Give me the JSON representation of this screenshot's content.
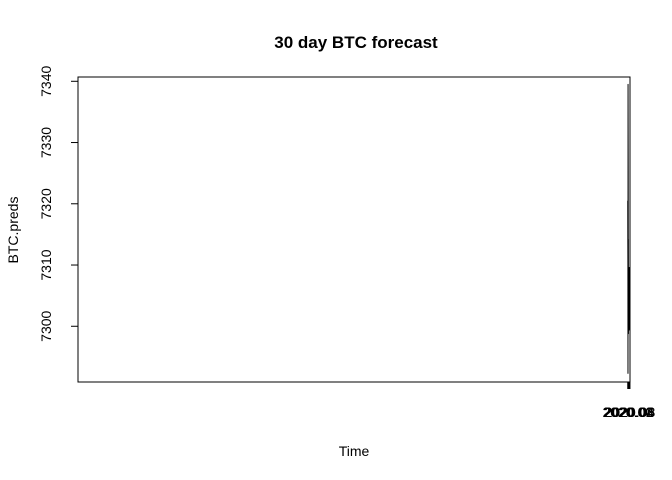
{
  "chart_data": {
    "type": "line",
    "title": "30 day BTC forecast",
    "xlabel": "Time",
    "ylabel": "BTC.preds",
    "xlim": [
      1999.9965,
      2020.0818
    ],
    "ylim": [
      7290.9,
      7340.7
    ],
    "x_ticks": [
      2020.0,
      2020.02,
      2020.04,
      2020.06,
      2020.08
    ],
    "x_tick_labels": [
      "2020.00",
      "2020.02",
      "2020.04",
      "2020.06",
      "2020.08"
    ],
    "y_ticks": [
      7300,
      7310,
      7320,
      7330,
      7340
    ],
    "y_tick_labels": [
      "7300",
      "7310",
      "7320",
      "7330",
      "7340"
    ],
    "grid": false,
    "legend": "none",
    "line_color": "#000000",
    "series": [
      {
        "x": [
          2020.0,
          2020.00274,
          2020.00548,
          2020.00822,
          2020.01096,
          2020.0137,
          2020.01644,
          2020.01918,
          2020.02192,
          2020.02466,
          2020.0274,
          2020.03014,
          2020.03288,
          2020.03562,
          2020.03836,
          2020.0411,
          2020.04384,
          2020.04658,
          2020.04932,
          2020.05205,
          2020.05479,
          2020.05753,
          2020.06027,
          2020.06301,
          2020.06575,
          2020.06849,
          2020.07123,
          2020.07397,
          2020.07671,
          2020.07945
        ],
        "values": [
          7320.5,
          7313.7,
          7310.5,
          7292.3,
          7339.5,
          7331.7,
          7325.5,
          7309.3,
          7314.2,
          7298.8,
          7306.5,
          7301.3,
          7303.6,
          7303.6,
          7308.9,
          7306.9,
          7300.8,
          7299.4,
          7308.5,
          7307.3,
          7309.6,
          7305.5,
          7303.4,
          7304.0,
          7307.1,
          7307.6,
          7306.2,
          7304.8,
          7305.3,
          7305.3
        ]
      }
    ]
  }
}
